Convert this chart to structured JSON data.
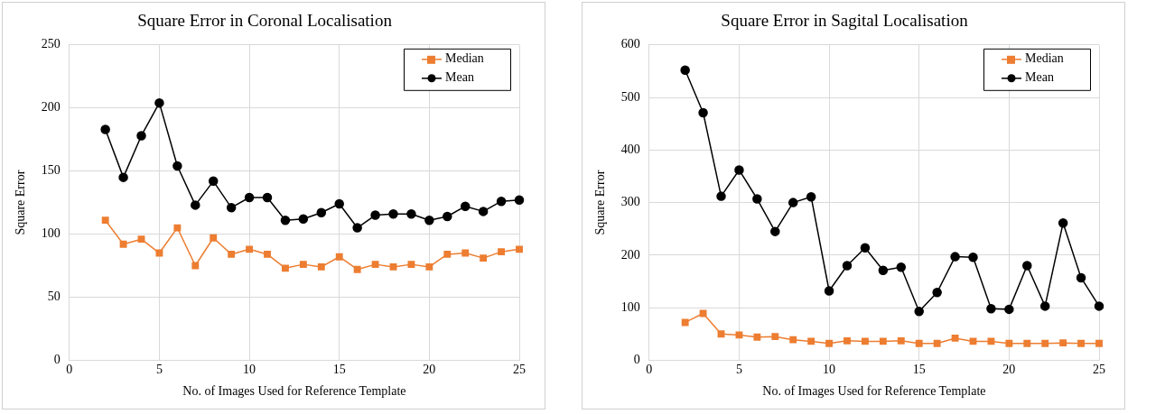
{
  "chart_data": [
    {
      "type": "line",
      "title": "Square Error in Coronal Localisation",
      "xlabel": "No. of Images Used for Reference Template",
      "ylabel": "Square Error",
      "x": [
        2,
        3,
        4,
        5,
        6,
        7,
        8,
        9,
        10,
        11,
        12,
        13,
        14,
        15,
        16,
        17,
        18,
        19,
        20,
        21,
        22,
        23,
        24,
        25
      ],
      "series": [
        {
          "name": "Median",
          "color": "#ed7d31",
          "marker": "square",
          "values": [
            111,
            92,
            96,
            85,
            105,
            75,
            97,
            84,
            88,
            84,
            73,
            76,
            74,
            82,
            72,
            76,
            74,
            76,
            74,
            84,
            85,
            81,
            86,
            88
          ]
        },
        {
          "name": "Mean",
          "color": "#000000",
          "marker": "circle",
          "values": [
            183,
            145,
            178,
            204,
            154,
            123,
            142,
            121,
            129,
            129,
            111,
            112,
            117,
            124,
            105,
            115,
            116,
            116,
            111,
            114,
            122,
            118,
            126,
            127
          ]
        }
      ],
      "xlim": [
        0,
        25
      ],
      "xticks": [
        0,
        5,
        10,
        15,
        20,
        25
      ],
      "ylim": [
        0,
        250
      ],
      "yticks": [
        0,
        50,
        100,
        150,
        200,
        250
      ],
      "grid": true,
      "legend": "top right"
    },
    {
      "type": "line",
      "title": "Square Error in Sagital Localisation",
      "xlabel": "No. of Images Used for Reference Template",
      "ylabel": "Square Error",
      "x": [
        2,
        3,
        4,
        5,
        6,
        7,
        8,
        9,
        10,
        11,
        12,
        13,
        14,
        15,
        16,
        17,
        18,
        19,
        20,
        21,
        22,
        23,
        24,
        25
      ],
      "series": [
        {
          "name": "Median",
          "color": "#ed7d31",
          "marker": "square",
          "values": [
            72,
            89,
            50,
            48,
            44,
            45,
            39,
            36,
            32,
            37,
            36,
            36,
            37,
            32,
            32,
            42,
            36,
            36,
            32,
            32,
            32,
            33,
            32,
            32
          ]
        },
        {
          "name": "Mean",
          "color": "#000000",
          "marker": "circle",
          "values": [
            552,
            471,
            312,
            362,
            307,
            245,
            300,
            311,
            132,
            180,
            214,
            171,
            177,
            93,
            129,
            197,
            196,
            98,
            97,
            180,
            103,
            261,
            157,
            103
          ]
        }
      ],
      "xlim": [
        0,
        25
      ],
      "xticks": [
        0,
        5,
        10,
        15,
        20,
        25
      ],
      "ylim": [
        0,
        600
      ],
      "yticks": [
        0,
        100,
        200,
        300,
        400,
        500,
        600
      ],
      "grid": true,
      "legend": "top right"
    }
  ]
}
